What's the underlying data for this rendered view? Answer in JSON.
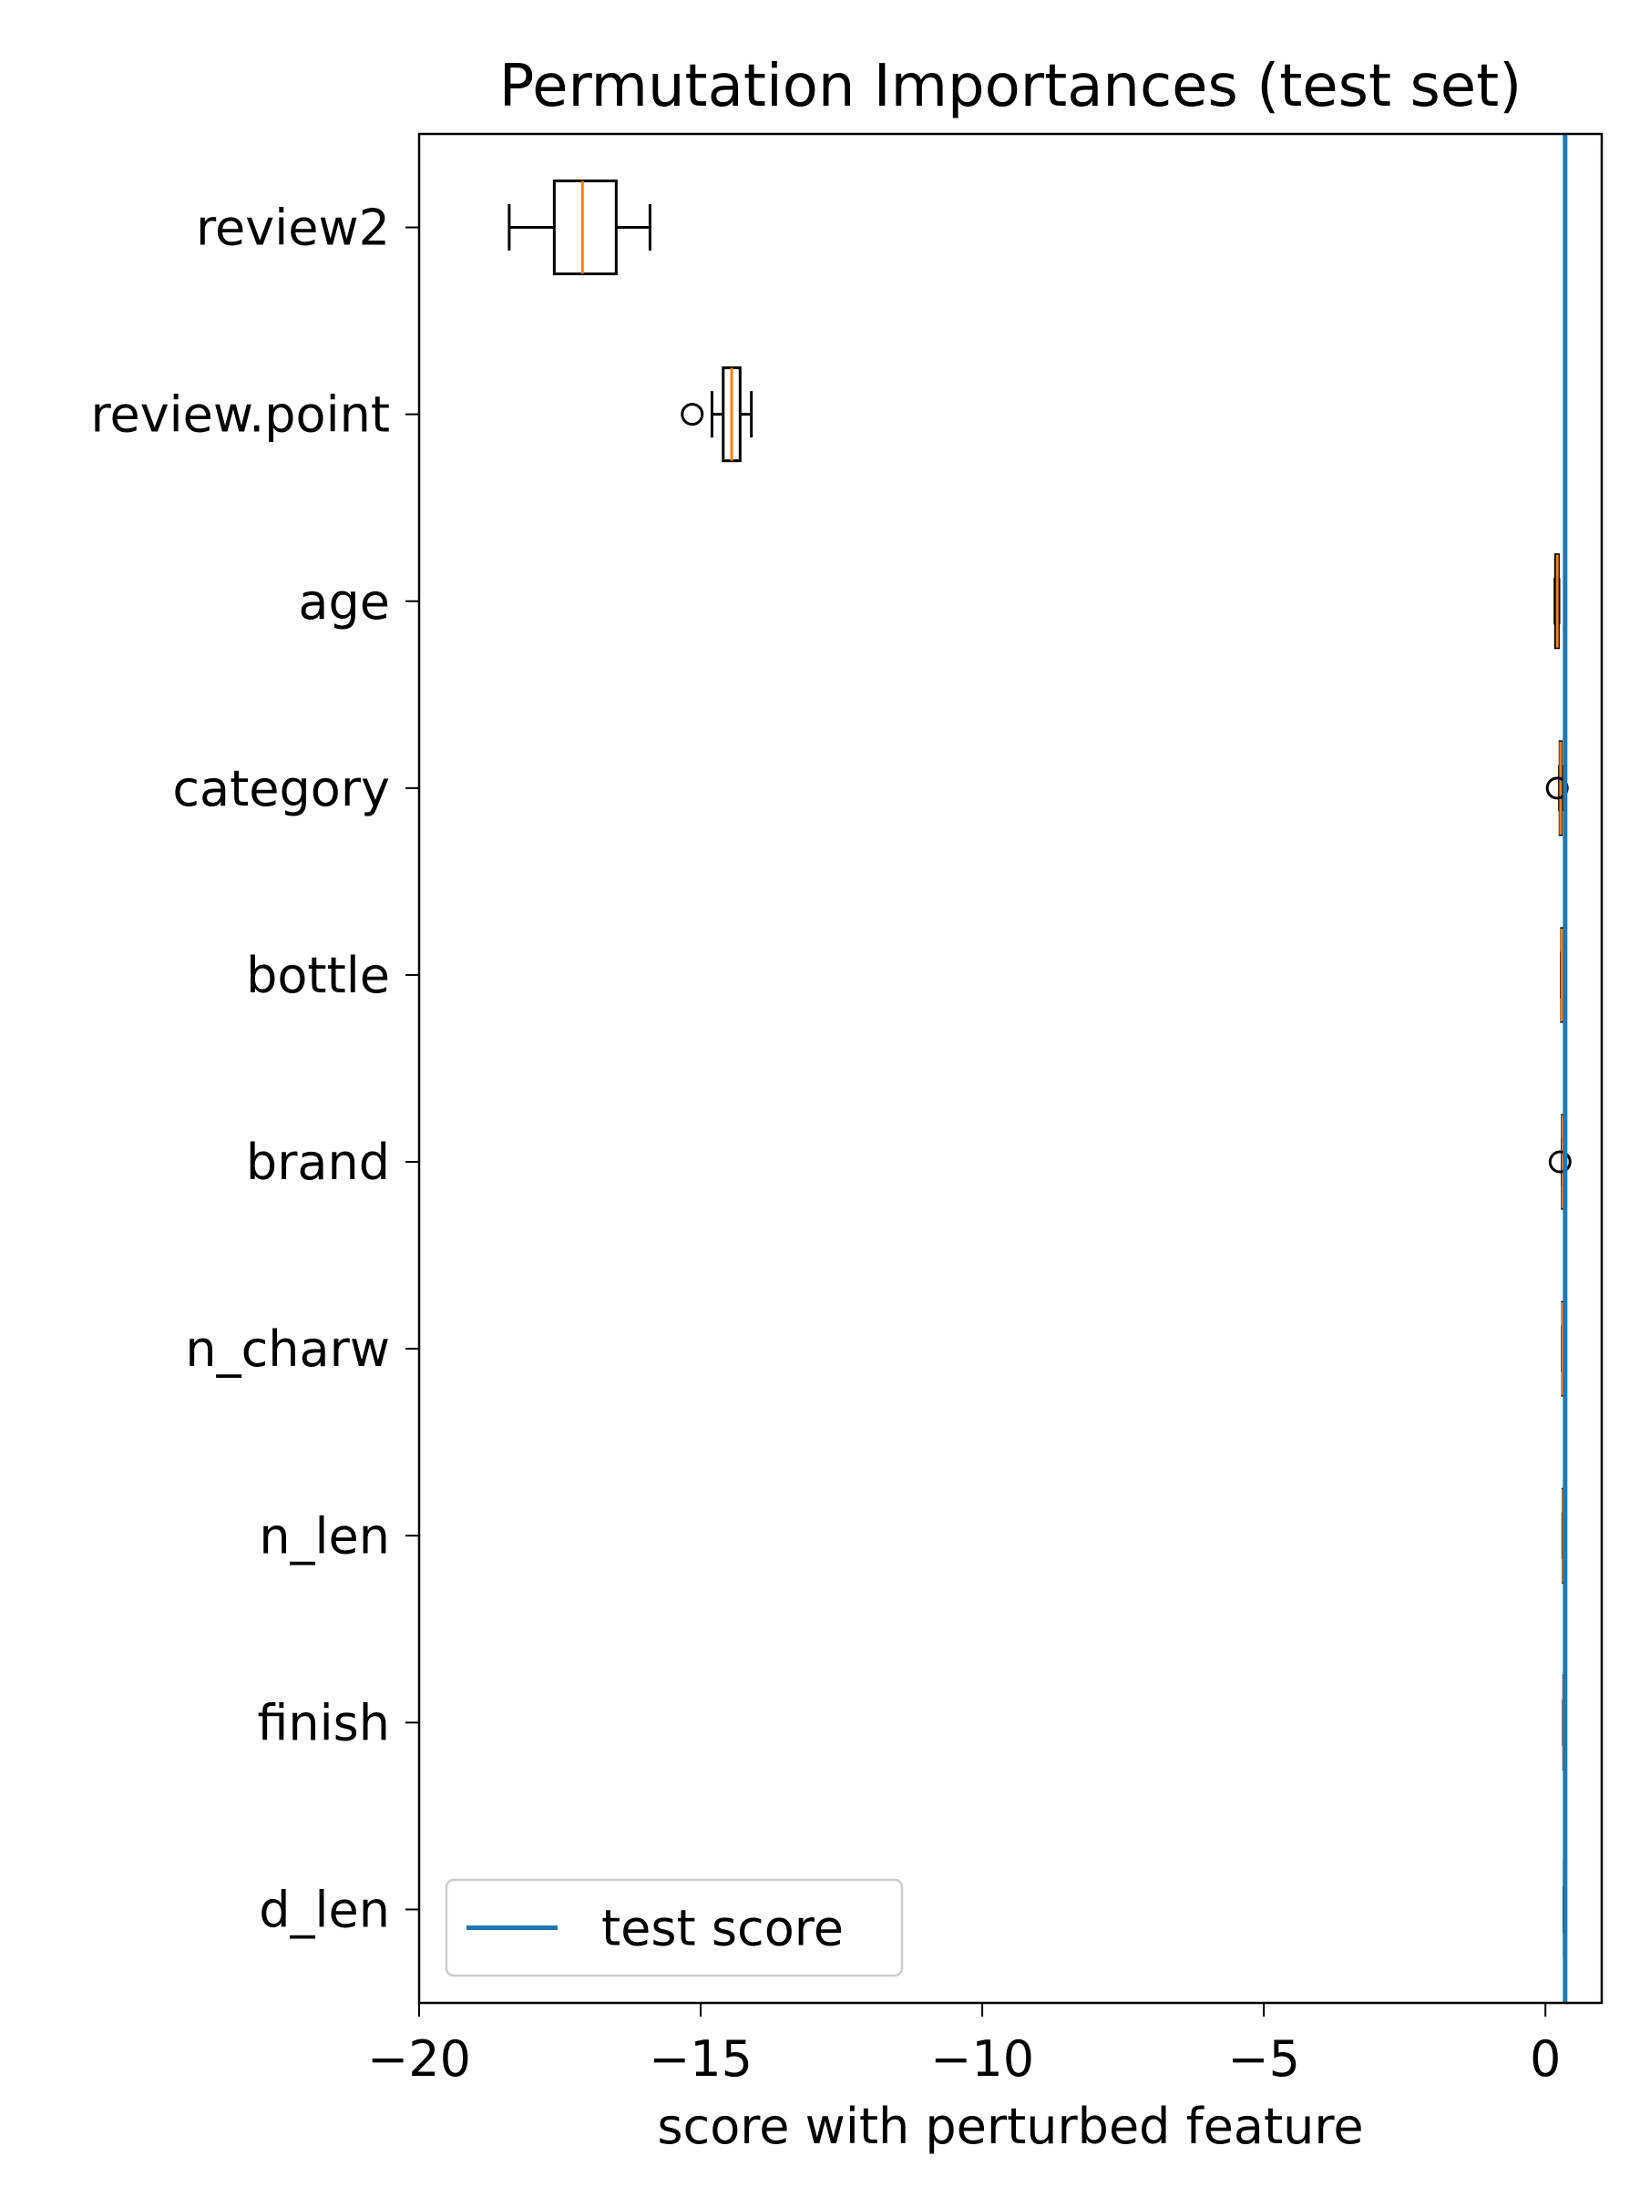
{
  "chart_data": {
    "type": "boxplot",
    "orientation": "horizontal",
    "title": "Permutation Importances (test set)",
    "xlabel": "score with perturbed feature",
    "ylabel": "",
    "xlim": [
      -20,
      1
    ],
    "xticks": [
      -20,
      -15,
      -10,
      -5,
      0
    ],
    "xtick_labels": [
      "−20",
      "−15",
      "−10",
      "−5",
      "0"
    ],
    "grid": false,
    "reference_line": {
      "label": "test score",
      "x": 0.35,
      "color": "#1f77b4"
    },
    "legend": {
      "position": "lower-left",
      "entries": [
        "test score"
      ]
    },
    "colors": {
      "box": "#000000",
      "median": "#ff7f0e",
      "reference": "#1f77b4"
    },
    "categories": [
      "review2",
      "review.point",
      "age",
      "category",
      "bottle",
      "brand",
      "n_charw",
      "n_len",
      "finish",
      "d_len"
    ],
    "boxes": [
      {
        "label": "review2",
        "whislo": -18.4,
        "q1": -17.6,
        "med": -17.1,
        "q3": -16.5,
        "whishi": -15.9,
        "fliers": []
      },
      {
        "label": "review.point",
        "whislo": -14.8,
        "q1": -14.6,
        "med": -14.45,
        "q3": -14.3,
        "whishi": -14.1,
        "fliers": [
          -15.15
        ]
      },
      {
        "label": "age",
        "whislo": 0.17,
        "q1": 0.18,
        "med": 0.21,
        "q3": 0.23,
        "whishi": 0.24,
        "fliers": []
      },
      {
        "label": "category",
        "whislo": 0.25,
        "q1": 0.26,
        "med": 0.27,
        "q3": 0.28,
        "whishi": 0.29,
        "fliers": [
          0.21
        ]
      },
      {
        "label": "bottle",
        "whislo": 0.28,
        "q1": 0.285,
        "med": 0.29,
        "q3": 0.295,
        "whishi": 0.3,
        "fliers": []
      },
      {
        "label": "brand",
        "whislo": 0.3,
        "q1": 0.3,
        "med": 0.31,
        "q3": 0.315,
        "whishi": 0.32,
        "fliers": [
          0.26
        ]
      },
      {
        "label": "n_charw",
        "whislo": 0.3,
        "q1": 0.305,
        "med": 0.31,
        "q3": 0.315,
        "whishi": 0.32,
        "fliers": []
      },
      {
        "label": "n_len",
        "whislo": 0.31,
        "q1": 0.315,
        "med": 0.32,
        "q3": 0.325,
        "whishi": 0.33,
        "fliers": []
      },
      {
        "label": "finish",
        "whislo": 0.32,
        "q1": 0.325,
        "med": 0.33,
        "q3": 0.335,
        "whishi": 0.34,
        "fliers": []
      },
      {
        "label": "d_len",
        "whislo": 0.33,
        "q1": 0.335,
        "med": 0.34,
        "q3": 0.345,
        "whishi": 0.35,
        "fliers": []
      }
    ]
  }
}
